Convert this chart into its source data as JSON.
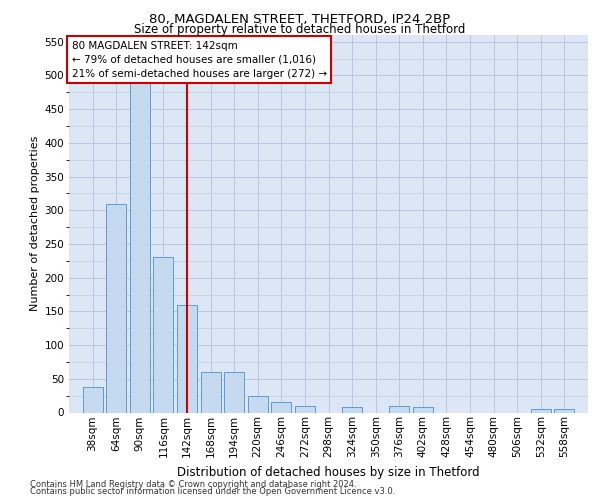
{
  "title1": "80, MAGDALEN STREET, THETFORD, IP24 2BP",
  "title2": "Size of property relative to detached houses in Thetford",
  "xlabel": "Distribution of detached houses by size in Thetford",
  "ylabel": "Number of detached properties",
  "footer1": "Contains HM Land Registry data © Crown copyright and database right 2024.",
  "footer2": "Contains public sector information licensed under the Open Government Licence v3.0.",
  "annotation_title": "80 MAGDALEN STREET: 142sqm",
  "annotation_line1": "← 79% of detached houses are smaller (1,016)",
  "annotation_line2": "21% of semi-detached houses are larger (272) →",
  "subject_size": 142,
  "categories": [
    38,
    64,
    90,
    116,
    142,
    168,
    194,
    220,
    246,
    272,
    298,
    324,
    350,
    376,
    402,
    428,
    454,
    480,
    506,
    532,
    558
  ],
  "values": [
    38,
    310,
    510,
    230,
    160,
    60,
    60,
    25,
    15,
    10,
    0,
    8,
    0,
    10,
    8,
    0,
    0,
    0,
    0,
    5,
    5
  ],
  "bar_color": "#c5d9ef",
  "bar_edge_color": "#5b9bd5",
  "vline_color": "#cc0000",
  "annotation_box_color": "#cc0000",
  "bg_color": "#dce6f5",
  "grid_color": "#b8c8e0",
  "ylim": [
    0,
    560
  ],
  "yticks": [
    0,
    50,
    100,
    150,
    200,
    250,
    300,
    350,
    400,
    450,
    500,
    550
  ]
}
